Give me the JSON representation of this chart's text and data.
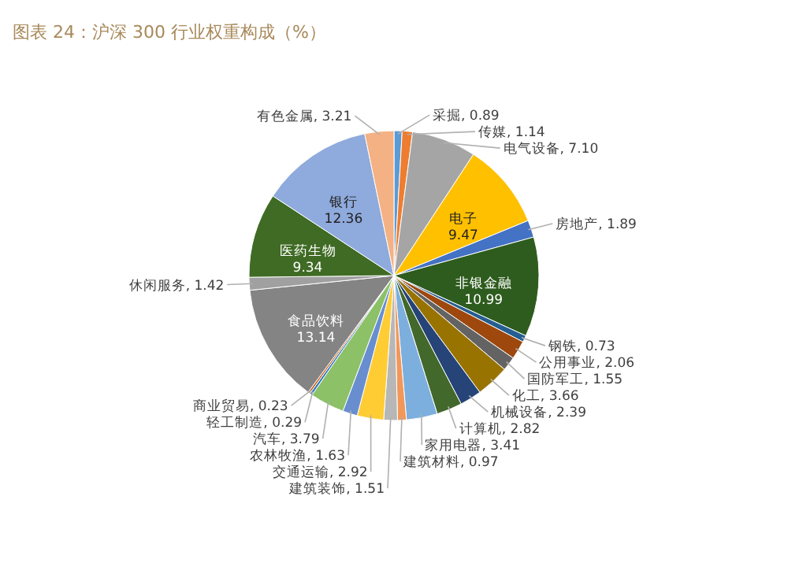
{
  "chart_data": {
    "type": "pie",
    "title": "图表 24：沪深 300 行业权重构成（%）",
    "categories": [
      "采掘",
      "传媒",
      "电气设备",
      "电子",
      "房地产",
      "非银金融",
      "钢铁",
      "公用事业",
      "国防军工",
      "化工",
      "机械设备",
      "计算机",
      "家用电器",
      "建筑材料",
      "建筑装饰",
      "交通运输",
      "农林牧渔",
      "汽车",
      "轻工制造",
      "商业贸易",
      "食品饮料",
      "休闲服务",
      "医药生物",
      "银行",
      "有色金属"
    ],
    "values": [
      0.89,
      1.14,
      7.1,
      9.47,
      1.89,
      10.99,
      0.73,
      2.06,
      1.55,
      3.66,
      2.39,
      2.82,
      3.41,
      0.97,
      1.51,
      2.92,
      1.63,
      3.79,
      0.29,
      0.23,
      13.14,
      1.42,
      9.34,
      12.36,
      3.21
    ],
    "value_labels": [
      "0.89",
      "1.14",
      "7.10",
      "9.47",
      "1.89",
      "10.99",
      "0.73",
      "2.06",
      "1.55",
      "3.66",
      "2.39",
      "2.82",
      "3.41",
      "0.97",
      "1.51",
      "2.92",
      "1.63",
      "3.79",
      "0.29",
      "0.23",
      "13.14",
      "1.42",
      "9.34",
      "12.36",
      "3.21"
    ],
    "colors": [
      "#5b9bd5",
      "#ed7d31",
      "#a5a5a5",
      "#ffc000",
      "#4472c4",
      "#2e5c1e",
      "#255e91",
      "#9e480e",
      "#636363",
      "#997300",
      "#264478",
      "#43682b",
      "#7cafdd",
      "#f1975a",
      "#b7b7b7",
      "#ffcd33",
      "#698ed0",
      "#8cc168",
      "#327dc2",
      "#d26012",
      "#848484",
      "#a0a0a0",
      "#3f6b24",
      "#8faadc",
      "#f4b183"
    ]
  }
}
